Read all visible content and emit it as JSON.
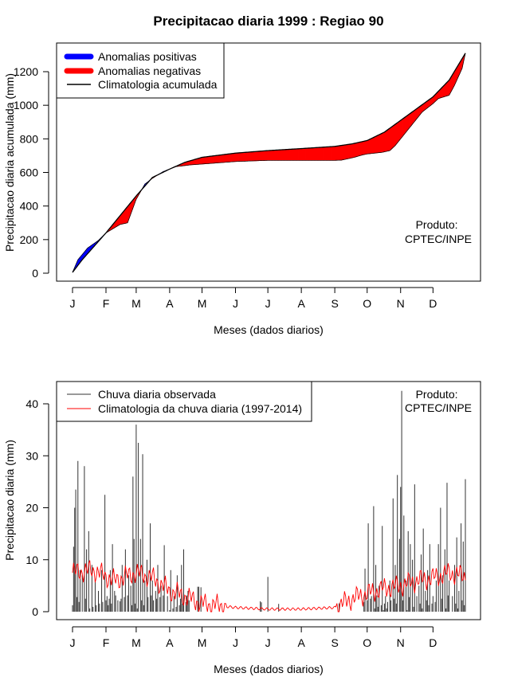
{
  "title": "Precipitacao diaria 1999 : Regiao 90",
  "chart_data": [
    {
      "type": "area",
      "name": "accumulated",
      "ylabel": "Precipitacao diaria acumulada (mm)",
      "xlabel": "Meses (dados diarios)",
      "ylim": [
        0,
        1300
      ],
      "yticks": [
        0,
        200,
        400,
        600,
        800,
        1000,
        1200
      ],
      "month_labels": [
        "J",
        "F",
        "M",
        "A",
        "M",
        "J",
        "J",
        "A",
        "S",
        "O",
        "N",
        "D"
      ],
      "month_start_days": [
        1,
        32,
        60,
        91,
        121,
        152,
        182,
        213,
        244,
        274,
        305,
        335
      ],
      "legend_placement": "top-left",
      "legend": [
        {
          "label": "Anomalias positivas",
          "color": "#0000ff"
        },
        {
          "label": "Anomalias negativas",
          "color": "#ff0000"
        },
        {
          "label": "Climatologia acumulada",
          "color": "#000000"
        }
      ],
      "annotation": "Produto:\nCPTEC/INPE",
      "climatology_knots": [
        [
          1,
          5
        ],
        [
          10,
          80
        ],
        [
          32,
          240
        ],
        [
          60,
          460
        ],
        [
          75,
          570
        ],
        [
          91,
          620
        ],
        [
          105,
          660
        ],
        [
          121,
          690
        ],
        [
          152,
          715
        ],
        [
          182,
          730
        ],
        [
          213,
          742
        ],
        [
          244,
          755
        ],
        [
          260,
          770
        ],
        [
          274,
          790
        ],
        [
          290,
          840
        ],
        [
          305,
          910
        ],
        [
          320,
          980
        ],
        [
          335,
          1050
        ],
        [
          350,
          1150
        ],
        [
          365,
          1310
        ]
      ],
      "observed_knots": [
        [
          1,
          5
        ],
        [
          6,
          80
        ],
        [
          15,
          150
        ],
        [
          25,
          195
        ],
        [
          32,
          240
        ],
        [
          45,
          290
        ],
        [
          52,
          300
        ],
        [
          60,
          440
        ],
        [
          68,
          530
        ],
        [
          75,
          565
        ],
        [
          85,
          605
        ],
        [
          91,
          620
        ],
        [
          97,
          635
        ],
        [
          104,
          640
        ],
        [
          110,
          645
        ],
        [
          121,
          650
        ],
        [
          152,
          665
        ],
        [
          182,
          672
        ],
        [
          213,
          672
        ],
        [
          244,
          672
        ],
        [
          250,
          673
        ],
        [
          255,
          680
        ],
        [
          262,
          690
        ],
        [
          270,
          705
        ],
        [
          274,
          710
        ],
        [
          288,
          720
        ],
        [
          295,
          730
        ],
        [
          300,
          760
        ],
        [
          305,
          800
        ],
        [
          315,
          880
        ],
        [
          325,
          960
        ],
        [
          335,
          1010
        ],
        [
          340,
          1040
        ],
        [
          350,
          1060
        ],
        [
          355,
          1120
        ],
        [
          362,
          1220
        ],
        [
          365,
          1310
        ]
      ]
    },
    {
      "type": "bar",
      "name": "daily",
      "ylabel": "Precipitacao diaria (mm)",
      "xlabel": "Meses (dados diarios)",
      "ylim": [
        0,
        43
      ],
      "yticks": [
        0,
        10,
        20,
        30,
        40
      ],
      "month_labels": [
        "J",
        "F",
        "M",
        "A",
        "M",
        "J",
        "J",
        "A",
        "S",
        "O",
        "N",
        "D"
      ],
      "month_start_days": [
        1,
        32,
        60,
        91,
        121,
        152,
        182,
        213,
        244,
        274,
        305,
        335
      ],
      "legend_placement": "top-left",
      "legend": [
        {
          "label": "Chuva diaria observada",
          "color": "#333333"
        },
        {
          "label": "Climatologia da chuva diaria (1997-2014)",
          "color": "#ff0000"
        }
      ],
      "annotation": "Produto:\nCPTEC/INPE",
      "peaks": [
        [
          2,
          12.5
        ],
        [
          3,
          20
        ],
        [
          4,
          23.5
        ],
        [
          6,
          29
        ],
        [
          8,
          8
        ],
        [
          10,
          7
        ],
        [
          12,
          28
        ],
        [
          14,
          12
        ],
        [
          16,
          15.5
        ],
        [
          19,
          9
        ],
        [
          22,
          6
        ],
        [
          25,
          4
        ],
        [
          28,
          8
        ],
        [
          31,
          22.5
        ],
        [
          33,
          3
        ],
        [
          36,
          8
        ],
        [
          38,
          13
        ],
        [
          40,
          4
        ],
        [
          45,
          2
        ],
        [
          47,
          9
        ],
        [
          50,
          12
        ],
        [
          53,
          7
        ],
        [
          55,
          5
        ],
        [
          57,
          26
        ],
        [
          58,
          14
        ],
        [
          60,
          36
        ],
        [
          62,
          32.5
        ],
        [
          64,
          14
        ],
        [
          66,
          30.3
        ],
        [
          68,
          6
        ],
        [
          70,
          10
        ],
        [
          73,
          17
        ],
        [
          75,
          6
        ],
        [
          78,
          4
        ],
        [
          80,
          9
        ],
        [
          83,
          5
        ],
        [
          86,
          12.8
        ],
        [
          89,
          3
        ],
        [
          92,
          8
        ],
        [
          95,
          3
        ],
        [
          98,
          7
        ],
        [
          102,
          9
        ],
        [
          104,
          12
        ],
        [
          108,
          4
        ],
        [
          117,
          4.8
        ],
        [
          118,
          4.8
        ],
        [
          120,
          4.7
        ],
        [
          175,
          2
        ],
        [
          176,
          1.8
        ],
        [
          182,
          6.7
        ],
        [
          192,
          1.5
        ],
        [
          248,
          1.6
        ],
        [
          272,
          8.3
        ],
        [
          275,
          17
        ],
        [
          278,
          3
        ],
        [
          280,
          20.3
        ],
        [
          282,
          9
        ],
        [
          285,
          5
        ],
        [
          288,
          16.5
        ],
        [
          291,
          3
        ],
        [
          295,
          6
        ],
        [
          298,
          21.8
        ],
        [
          300,
          9
        ],
        [
          302,
          26.3
        ],
        [
          304,
          14
        ],
        [
          305,
          24
        ],
        [
          306,
          42.5
        ],
        [
          308,
          18.5
        ],
        [
          310,
          6
        ],
        [
          312,
          15.5
        ],
        [
          314,
          13
        ],
        [
          316,
          10
        ],
        [
          318,
          24.5
        ],
        [
          320,
          3
        ],
        [
          322,
          5
        ],
        [
          324,
          11
        ],
        [
          326,
          16
        ],
        [
          328,
          4
        ],
        [
          330,
          8
        ],
        [
          332,
          13
        ],
        [
          335,
          3
        ],
        [
          338,
          6
        ],
        [
          340,
          13
        ],
        [
          342,
          20
        ],
        [
          344,
          7
        ],
        [
          346,
          12
        ],
        [
          348,
          24.8
        ],
        [
          350,
          6
        ],
        [
          353,
          3
        ],
        [
          355,
          9
        ],
        [
          357,
          14.3
        ],
        [
          359,
          4
        ],
        [
          361,
          17
        ],
        [
          363,
          13.5
        ],
        [
          365,
          25.5
        ]
      ],
      "climatology_knots": [
        [
          1,
          7.5
        ],
        [
          20,
          8
        ],
        [
          40,
          6
        ],
        [
          60,
          7.5
        ],
        [
          75,
          6.5
        ],
        [
          91,
          4
        ],
        [
          105,
          3
        ],
        [
          121,
          1.5
        ],
        [
          152,
          0.8
        ],
        [
          182,
          0.5
        ],
        [
          213,
          0.5
        ],
        [
          244,
          0.8
        ],
        [
          260,
          2.5
        ],
        [
          274,
          3.5
        ],
        [
          290,
          4.5
        ],
        [
          305,
          5
        ],
        [
          320,
          6
        ],
        [
          335,
          6.5
        ],
        [
          350,
          7.5
        ],
        [
          365,
          6.8
        ]
      ]
    }
  ]
}
